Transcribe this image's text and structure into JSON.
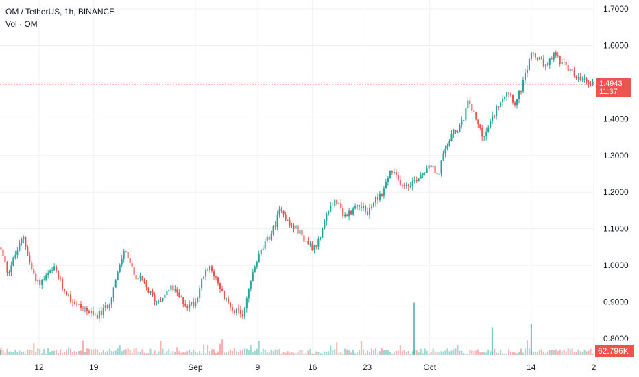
{
  "header": {
    "symbol_line": "OM / TetherUS, 1h, BINANCE",
    "volume_line": "Vol · OM"
  },
  "price_badge": {
    "price": "1.4943",
    "countdown": "11:37"
  },
  "volume_badge": "62.796K",
  "colors": {
    "up": "#26a69a",
    "down": "#ef5350",
    "grid": "#eef0f3",
    "axis_text": "#131722"
  },
  "chart_data": {
    "type": "candlestick",
    "title": "OM / TetherUS, 1h, BINANCE",
    "ylim": [
      0.78,
      1.72
    ],
    "y_ticks": [
      "1.7000",
      "1.6000",
      "1.5000",
      "1.4000",
      "1.3000",
      "1.2000",
      "1.1000",
      "1.0000",
      "0.9000",
      "0.8000"
    ],
    "y_tick_values": [
      1.7,
      1.6,
      1.5,
      1.4,
      1.3,
      1.2,
      1.1,
      1.0,
      0.9,
      0.8
    ],
    "x_ticks": [
      "12",
      "19",
      "Sep",
      "9",
      "16",
      "23",
      "Oct",
      "14",
      "2"
    ],
    "x_tick_dates": [
      "2024-08-12",
      "2024-08-19",
      "2024-09-01",
      "2024-09-09",
      "2024-09-16",
      "2024-09-23",
      "2024-10-01",
      "2024-10-14",
      "2024-10-22"
    ],
    "x_range": [
      "2024-08-07",
      "2024-10-22"
    ],
    "last_price": 1.4943,
    "price_path": [
      [
        "2024-08-07",
        1.05
      ],
      [
        "2024-08-08",
        0.98
      ],
      [
        "2024-08-09",
        1.03
      ],
      [
        "2024-08-10",
        1.08
      ],
      [
        "2024-08-11",
        0.99
      ],
      [
        "2024-08-12",
        0.95
      ],
      [
        "2024-08-13",
        0.97
      ],
      [
        "2024-08-14",
        0.99
      ],
      [
        "2024-08-15",
        0.94
      ],
      [
        "2024-08-16",
        0.91
      ],
      [
        "2024-08-17",
        0.89
      ],
      [
        "2024-08-18",
        0.88
      ],
      [
        "2024-08-19",
        0.86
      ],
      [
        "2024-08-20",
        0.87
      ],
      [
        "2024-08-21",
        0.9
      ],
      [
        "2024-08-22",
        0.97
      ],
      [
        "2024-08-23",
        1.05
      ],
      [
        "2024-08-24",
        0.98
      ],
      [
        "2024-08-25",
        0.96
      ],
      [
        "2024-08-26",
        0.93
      ],
      [
        "2024-08-27",
        0.9
      ],
      [
        "2024-08-28",
        0.92
      ],
      [
        "2024-08-29",
        0.94
      ],
      [
        "2024-08-30",
        0.91
      ],
      [
        "2024-08-31",
        0.89
      ],
      [
        "2024-09-01",
        0.9
      ],
      [
        "2024-09-02",
        0.97
      ],
      [
        "2024-09-03",
        1.0
      ],
      [
        "2024-09-04",
        0.94
      ],
      [
        "2024-09-05",
        0.9
      ],
      [
        "2024-09-06",
        0.88
      ],
      [
        "2024-09-07",
        0.86
      ],
      [
        "2024-09-08",
        0.95
      ],
      [
        "2024-09-09",
        1.02
      ],
      [
        "2024-09-10",
        1.06
      ],
      [
        "2024-09-11",
        1.1
      ],
      [
        "2024-09-12",
        1.16
      ],
      [
        "2024-09-13",
        1.11
      ],
      [
        "2024-09-14",
        1.1
      ],
      [
        "2024-09-15",
        1.07
      ],
      [
        "2024-09-16",
        1.05
      ],
      [
        "2024-09-17",
        1.07
      ],
      [
        "2024-09-18",
        1.15
      ],
      [
        "2024-09-19",
        1.18
      ],
      [
        "2024-09-20",
        1.13
      ],
      [
        "2024-09-21",
        1.15
      ],
      [
        "2024-09-22",
        1.17
      ],
      [
        "2024-09-23",
        1.14
      ],
      [
        "2024-09-24",
        1.18
      ],
      [
        "2024-09-25",
        1.2
      ],
      [
        "2024-09-26",
        1.26
      ],
      [
        "2024-09-27",
        1.23
      ],
      [
        "2024-09-28",
        1.22
      ],
      [
        "2024-09-29",
        1.23
      ],
      [
        "2024-09-30",
        1.25
      ],
      [
        "2024-10-01",
        1.28
      ],
      [
        "2024-10-02",
        1.24
      ],
      [
        "2024-10-03",
        1.32
      ],
      [
        "2024-10-04",
        1.36
      ],
      [
        "2024-10-05",
        1.38
      ],
      [
        "2024-10-06",
        1.45
      ],
      [
        "2024-10-07",
        1.39
      ],
      [
        "2024-10-08",
        1.35
      ],
      [
        "2024-10-09",
        1.4
      ],
      [
        "2024-10-10",
        1.45
      ],
      [
        "2024-10-11",
        1.48
      ],
      [
        "2024-10-12",
        1.44
      ],
      [
        "2024-10-13",
        1.5
      ],
      [
        "2024-10-14",
        1.58
      ],
      [
        "2024-10-15",
        1.56
      ],
      [
        "2024-10-16",
        1.54
      ],
      [
        "2024-10-17",
        1.58
      ],
      [
        "2024-10-18",
        1.55
      ],
      [
        "2024-10-19",
        1.53
      ],
      [
        "2024-10-20",
        1.51
      ],
      [
        "2024-10-21",
        1.5
      ],
      [
        "2024-10-22",
        1.4943
      ]
    ],
    "volume_spikes": [
      [
        "2024-08-07",
        0.08
      ],
      [
        "2024-09-29",
        0.85
      ],
      [
        "2024-10-09",
        0.45
      ],
      [
        "2024-10-14",
        0.5
      ]
    ],
    "grid": true
  }
}
